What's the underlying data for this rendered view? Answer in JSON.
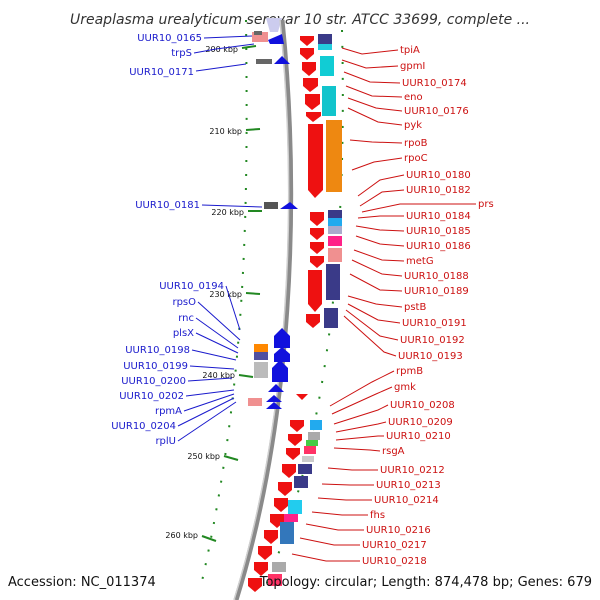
{
  "title": "Ureaplasma urealyticum serovar 10 str. ATCC 33699, complete ...",
  "footer": {
    "accession": "Accession: NC_011374",
    "summary": "Topology: circular; Length: 874,478 bp; Genes: 679"
  },
  "ticks": [
    {
      "label": "200 kbp"
    },
    {
      "label": "210 kbp"
    },
    {
      "label": "220 kbp"
    },
    {
      "label": "230 kbp"
    },
    {
      "label": "240 kbp"
    },
    {
      "label": "250 kbp"
    },
    {
      "label": "260 kbp"
    }
  ],
  "left_genes": [
    {
      "label": "UUR10_0165"
    },
    {
      "label": "trpS"
    },
    {
      "label": "UUR10_0171"
    },
    {
      "label": "UUR10_0181"
    },
    {
      "label": "UUR10_0194"
    },
    {
      "label": "rpsO"
    },
    {
      "label": "rnc"
    },
    {
      "label": "plsX"
    },
    {
      "label": "UUR10_0198"
    },
    {
      "label": "UUR10_0199"
    },
    {
      "label": "UUR10_0200"
    },
    {
      "label": "UUR10_0202"
    },
    {
      "label": "rpmA"
    },
    {
      "label": "UUR10_0204"
    },
    {
      "label": "rplU"
    }
  ],
  "right_genes": [
    {
      "label": "tpiA"
    },
    {
      "label": "gpmI"
    },
    {
      "label": "UUR10_0174"
    },
    {
      "label": "eno"
    },
    {
      "label": "UUR10_0176"
    },
    {
      "label": "pyk"
    },
    {
      "label": "rpoB"
    },
    {
      "label": "rpoC"
    },
    {
      "label": "UUR10_0180"
    },
    {
      "label": "UUR10_0182"
    },
    {
      "label": "prs"
    },
    {
      "label": "UUR10_0184"
    },
    {
      "label": "UUR10_0185"
    },
    {
      "label": "UUR10_0186"
    },
    {
      "label": "metG"
    },
    {
      "label": "UUR10_0188"
    },
    {
      "label": "UUR10_0189"
    },
    {
      "label": "pstB"
    },
    {
      "label": "UUR10_0191"
    },
    {
      "label": "UUR10_0192"
    },
    {
      "label": "UUR10_0193"
    },
    {
      "label": "rpmB"
    },
    {
      "label": "gmk"
    },
    {
      "label": "UUR10_0208"
    },
    {
      "label": "UUR10_0209"
    },
    {
      "label": "UUR10_0210"
    },
    {
      "label": "rsgA"
    },
    {
      "label": "UUR10_0212"
    },
    {
      "label": "UUR10_0213"
    },
    {
      "label": "UUR10_0214"
    },
    {
      "label": "fhs"
    },
    {
      "label": "UUR10_0216"
    },
    {
      "label": "UUR10_0217"
    },
    {
      "label": "UUR10_0218"
    }
  ],
  "colors": {
    "forward_gene": "#ee1111",
    "reverse_gene": "#1111dd",
    "backbone": "#999999",
    "tick": "#228822",
    "left_label": "#1a1acc",
    "right_label": "#cc1111"
  }
}
